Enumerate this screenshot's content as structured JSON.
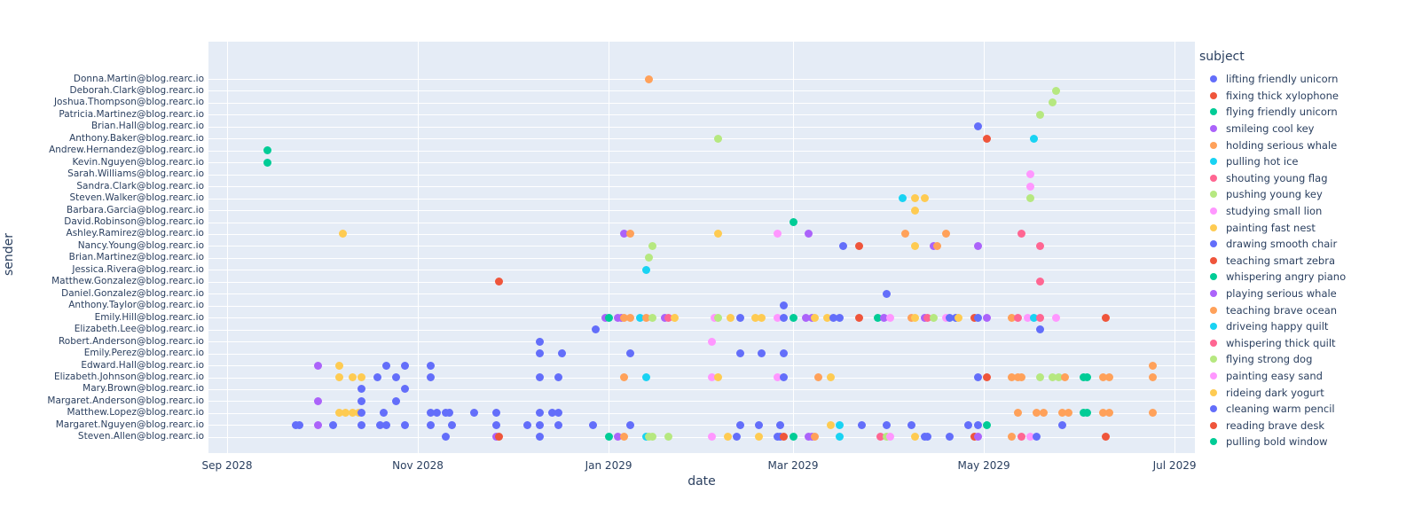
{
  "figure": {
    "x_axis_title": "date",
    "y_axis_title": "sender",
    "legend_title": "subject",
    "plot_bg": "#E5ECF6",
    "grid_color": "#ffffff",
    "text_color": "#2a3f5f"
  },
  "palette": [
    "#636EFA",
    "#EF553B",
    "#00CC96",
    "#AB63FA",
    "#FFA15A",
    "#19D3F3",
    "#FF6692",
    "#B6E880",
    "#FF97FF",
    "#FECB52"
  ],
  "chart_data": {
    "type": "scatter",
    "title": "",
    "xlabel": "date",
    "ylabel": "sender",
    "legend_title": "subject",
    "legend_position": "right",
    "grid": true,
    "x_ticks": [
      "Sep 2028",
      "Nov 2028",
      "Jan 2029",
      "Mar 2029",
      "May 2029",
      "Jul 2029"
    ],
    "x_tick_dates": [
      "2028-09-01",
      "2028-11-01",
      "2029-01-01",
      "2029-03-01",
      "2029-05-01",
      "2029-07-01"
    ],
    "x_range": [
      "2028-08-26",
      "2029-07-07"
    ],
    "subjects": [
      "lifting friendly unicorn",
      "fixing thick xylophone",
      "flying friendly unicorn",
      "smileing cool key",
      "holding serious whale",
      "pulling hot ice",
      "shouting young flag",
      "pushing young key",
      "studying small lion",
      "painting fast nest",
      "drawing smooth chair",
      "teaching smart zebra",
      "whispering angry piano",
      "playing serious whale",
      "teaching brave ocean",
      "driveing happy quilt",
      "whispering thick quilt",
      "flying strong dog",
      "painting easy sand",
      "rideing dark yogurt",
      "cleaning warm pencil",
      "reading brave desk",
      "pulling bold window"
    ],
    "senders": [
      "Donna.Martin@blog.rearc.io",
      "Deborah.Clark@blog.rearc.io",
      "Joshua.Thompson@blog.rearc.io",
      "Patricia.Martinez@blog.rearc.io",
      "Brian.Hall@blog.rearc.io",
      "Anthony.Baker@blog.rearc.io",
      "Andrew.Hernandez@blog.rearc.io",
      "Kevin.Nguyen@blog.rearc.io",
      "Sarah.Williams@blog.rearc.io",
      "Sandra.Clark@blog.rearc.io",
      "Steven.Walker@blog.rearc.io",
      "Barbara.Garcia@blog.rearc.io",
      "David.Robinson@blog.rearc.io",
      "Ashley.Ramirez@blog.rearc.io",
      "Nancy.Young@blog.rearc.io",
      "Brian.Martinez@blog.rearc.io",
      "Jessica.Rivera@blog.rearc.io",
      "Matthew.Gonzalez@blog.rearc.io",
      "Daniel.Gonzalez@blog.rearc.io",
      "Anthony.Taylor@blog.rearc.io",
      "Emily.Hill@blog.rearc.io",
      "Elizabeth.Lee@blog.rearc.io",
      "Robert.Anderson@blog.rearc.io",
      "Emily.Perez@blog.rearc.io",
      "Edward.Hall@blog.rearc.io",
      "Elizabeth.Johnson@blog.rearc.io",
      "Mary.Brown@blog.rearc.io",
      "Margaret.Anderson@blog.rearc.io",
      "Matthew.Lopez@blog.rearc.io",
      "Margaret.Nguyen@blog.rearc.io",
      "Steven.Allen@blog.rearc.io"
    ],
    "points_note": "each point = [date, palette_color_index]; subjects cycle the 10-color palette",
    "points": [
      {
        "sender": 0,
        "pts": [
          [
            "2029-01-14",
            4
          ]
        ]
      },
      {
        "sender": 1,
        "pts": [
          [
            "2029-05-24",
            7
          ]
        ]
      },
      {
        "sender": 2,
        "pts": [
          [
            "2029-05-23",
            7
          ]
        ]
      },
      {
        "sender": 3,
        "pts": [
          [
            "2029-05-19",
            7
          ]
        ]
      },
      {
        "sender": 4,
        "pts": [
          [
            "2029-04-29",
            0
          ]
        ]
      },
      {
        "sender": 5,
        "pts": [
          [
            "2029-02-05",
            7
          ],
          [
            "2029-05-02",
            1
          ],
          [
            "2029-05-17",
            5
          ]
        ]
      },
      {
        "sender": 6,
        "pts": [
          [
            "2028-09-14",
            2
          ]
        ]
      },
      {
        "sender": 7,
        "pts": [
          [
            "2028-09-14",
            2
          ]
        ]
      },
      {
        "sender": 8,
        "pts": [
          [
            "2029-05-16",
            8
          ]
        ]
      },
      {
        "sender": 9,
        "pts": [
          [
            "2029-05-16",
            8
          ]
        ]
      },
      {
        "sender": 10,
        "pts": [
          [
            "2029-04-05",
            5
          ],
          [
            "2029-04-09",
            9
          ],
          [
            "2029-04-12",
            9
          ],
          [
            "2029-05-16",
            7
          ]
        ]
      },
      {
        "sender": 11,
        "pts": [
          [
            "2029-04-09",
            9
          ]
        ]
      },
      {
        "sender": 12,
        "pts": [
          [
            "2029-03-01",
            2
          ]
        ]
      },
      {
        "sender": 13,
        "pts": [
          [
            "2028-10-08",
            9
          ],
          [
            "2029-01-06",
            3
          ],
          [
            "2029-01-08",
            4
          ],
          [
            "2029-02-05",
            9
          ],
          [
            "2029-02-24",
            8
          ],
          [
            "2029-03-06",
            3
          ],
          [
            "2029-04-06",
            4
          ],
          [
            "2029-04-19",
            4
          ],
          [
            "2029-05-13",
            6
          ]
        ]
      },
      {
        "sender": 14,
        "pts": [
          [
            "2029-01-15",
            7
          ],
          [
            "2029-03-17",
            0
          ],
          [
            "2029-03-22",
            1
          ],
          [
            "2029-04-09",
            9
          ],
          [
            "2029-04-15",
            3
          ],
          [
            "2029-04-16",
            4
          ],
          [
            "2029-04-29",
            3
          ],
          [
            "2029-05-19",
            6
          ]
        ]
      },
      {
        "sender": 15,
        "pts": [
          [
            "2029-01-14",
            7
          ]
        ]
      },
      {
        "sender": 16,
        "pts": [
          [
            "2029-01-13",
            5
          ]
        ]
      },
      {
        "sender": 17,
        "pts": [
          [
            "2028-11-27",
            1
          ],
          [
            "2029-05-19",
            6
          ]
        ]
      },
      {
        "sender": 18,
        "pts": [
          [
            "2029-03-31",
            0
          ]
        ]
      },
      {
        "sender": 19,
        "pts": [
          [
            "2029-02-26",
            0
          ]
        ]
      },
      {
        "sender": 20,
        "pts": [
          [
            "2028-12-31",
            3
          ],
          [
            "2029-01-01",
            2
          ],
          [
            "2029-01-04",
            3
          ],
          [
            "2029-01-05",
            3
          ],
          [
            "2029-01-06",
            4
          ],
          [
            "2029-01-08",
            4
          ],
          [
            "2029-01-11",
            5
          ],
          [
            "2029-01-13",
            4
          ],
          [
            "2029-01-15",
            7
          ],
          [
            "2029-01-19",
            3
          ],
          [
            "2029-01-20",
            6
          ],
          [
            "2029-01-22",
            9
          ],
          [
            "2029-02-04",
            8
          ],
          [
            "2029-02-05",
            7
          ],
          [
            "2029-02-09",
            9
          ],
          [
            "2029-02-12",
            0
          ],
          [
            "2029-02-17",
            9
          ],
          [
            "2029-02-19",
            9
          ],
          [
            "2029-02-24",
            8
          ],
          [
            "2029-02-26",
            0
          ],
          [
            "2029-03-01",
            2
          ],
          [
            "2029-03-05",
            3
          ],
          [
            "2029-03-07",
            3
          ],
          [
            "2029-03-08",
            9
          ],
          [
            "2029-03-12",
            9
          ],
          [
            "2029-03-14",
            0
          ],
          [
            "2029-03-16",
            0
          ],
          [
            "2029-03-22",
            1
          ],
          [
            "2029-03-28",
            2
          ],
          [
            "2029-03-30",
            3
          ],
          [
            "2029-04-01",
            8
          ],
          [
            "2029-04-08",
            4
          ],
          [
            "2029-04-09",
            9
          ],
          [
            "2029-04-12",
            3
          ],
          [
            "2029-04-13",
            6
          ],
          [
            "2029-04-15",
            7
          ],
          [
            "2029-04-19",
            8
          ],
          [
            "2029-04-20",
            0
          ],
          [
            "2029-04-22",
            0
          ],
          [
            "2029-04-23",
            9
          ],
          [
            "2029-04-28",
            1
          ],
          [
            "2029-04-29",
            0
          ],
          [
            "2029-05-02",
            3
          ],
          [
            "2029-05-10",
            4
          ],
          [
            "2029-05-12",
            6
          ],
          [
            "2029-05-15",
            8
          ],
          [
            "2029-05-17",
            5
          ],
          [
            "2029-05-19",
            6
          ],
          [
            "2029-05-24",
            8
          ],
          [
            "2029-06-09",
            1
          ]
        ]
      },
      {
        "sender": 21,
        "pts": [
          [
            "2028-12-28",
            0
          ],
          [
            "2029-05-19",
            0
          ]
        ]
      },
      {
        "sender": 22,
        "pts": [
          [
            "2028-12-10",
            0
          ],
          [
            "2029-02-03",
            8
          ]
        ]
      },
      {
        "sender": 23,
        "pts": [
          [
            "2028-12-10",
            0
          ],
          [
            "2028-12-17",
            0
          ],
          [
            "2029-01-08",
            0
          ],
          [
            "2029-02-12",
            0
          ],
          [
            "2029-02-19",
            0
          ],
          [
            "2029-02-26",
            0
          ]
        ]
      },
      {
        "sender": 24,
        "pts": [
          [
            "2028-09-30",
            3
          ],
          [
            "2028-10-07",
            9
          ],
          [
            "2028-10-22",
            0
          ],
          [
            "2028-10-28",
            0
          ],
          [
            "2028-11-05",
            0
          ],
          [
            "2029-06-24",
            4
          ]
        ]
      },
      {
        "sender": 25,
        "pts": [
          [
            "2028-10-07",
            9
          ],
          [
            "2028-10-11",
            9
          ],
          [
            "2028-10-14",
            9
          ],
          [
            "2028-10-19",
            0
          ],
          [
            "2028-10-25",
            0
          ],
          [
            "2028-11-05",
            0
          ],
          [
            "2028-12-10",
            0
          ],
          [
            "2028-12-16",
            0
          ],
          [
            "2029-01-06",
            4
          ],
          [
            "2029-01-13",
            5
          ],
          [
            "2029-02-03",
            8
          ],
          [
            "2029-02-05",
            9
          ],
          [
            "2029-02-24",
            8
          ],
          [
            "2029-02-26",
            0
          ],
          [
            "2029-03-09",
            4
          ],
          [
            "2029-03-13",
            9
          ],
          [
            "2029-04-29",
            0
          ],
          [
            "2029-05-02",
            1
          ],
          [
            "2029-05-10",
            4
          ],
          [
            "2029-05-12",
            4
          ],
          [
            "2029-05-13",
            4
          ],
          [
            "2029-05-19",
            7
          ],
          [
            "2029-05-23",
            7
          ],
          [
            "2029-05-25",
            7
          ],
          [
            "2029-05-27",
            4
          ],
          [
            "2029-06-02",
            2
          ],
          [
            "2029-06-03",
            2
          ],
          [
            "2029-06-08",
            4
          ],
          [
            "2029-06-10",
            4
          ],
          [
            "2029-06-24",
            4
          ]
        ]
      },
      {
        "sender": 26,
        "pts": [
          [
            "2028-10-14",
            0
          ],
          [
            "2028-10-28",
            0
          ]
        ]
      },
      {
        "sender": 27,
        "pts": [
          [
            "2028-09-30",
            3
          ],
          [
            "2028-10-14",
            0
          ],
          [
            "2028-10-25",
            0
          ]
        ]
      },
      {
        "sender": 28,
        "pts": [
          [
            "2028-10-07",
            9
          ],
          [
            "2028-10-09",
            9
          ],
          [
            "2028-10-11",
            9
          ],
          [
            "2028-10-13",
            9
          ],
          [
            "2028-10-14",
            0
          ],
          [
            "2028-10-21",
            0
          ],
          [
            "2028-11-05",
            0
          ],
          [
            "2028-11-07",
            0
          ],
          [
            "2028-11-10",
            0
          ],
          [
            "2028-11-11",
            0
          ],
          [
            "2028-11-19",
            0
          ],
          [
            "2028-11-26",
            0
          ],
          [
            "2028-12-10",
            0
          ],
          [
            "2028-12-14",
            0
          ],
          [
            "2028-12-16",
            0
          ],
          [
            "2029-05-12",
            4
          ],
          [
            "2029-05-18",
            4
          ],
          [
            "2029-05-20",
            4
          ],
          [
            "2029-05-26",
            4
          ],
          [
            "2029-05-28",
            4
          ],
          [
            "2029-06-02",
            2
          ],
          [
            "2029-06-03",
            2
          ],
          [
            "2029-06-08",
            4
          ],
          [
            "2029-06-10",
            4
          ],
          [
            "2029-06-24",
            4
          ]
        ]
      },
      {
        "sender": 29,
        "pts": [
          [
            "2028-09-23",
            0
          ],
          [
            "2028-09-24",
            0
          ],
          [
            "2028-09-30",
            3
          ],
          [
            "2028-10-05",
            0
          ],
          [
            "2028-10-14",
            0
          ],
          [
            "2028-10-20",
            0
          ],
          [
            "2028-10-22",
            0
          ],
          [
            "2028-10-28",
            0
          ],
          [
            "2028-11-05",
            0
          ],
          [
            "2028-11-12",
            0
          ],
          [
            "2028-11-26",
            0
          ],
          [
            "2028-12-06",
            0
          ],
          [
            "2028-12-10",
            0
          ],
          [
            "2028-12-16",
            0
          ],
          [
            "2028-12-27",
            0
          ],
          [
            "2029-01-08",
            0
          ],
          [
            "2029-02-12",
            0
          ],
          [
            "2029-02-18",
            0
          ],
          [
            "2029-02-25",
            0
          ],
          [
            "2029-03-13",
            9
          ],
          [
            "2029-03-16",
            5
          ],
          [
            "2029-03-23",
            0
          ],
          [
            "2029-03-31",
            0
          ],
          [
            "2029-04-08",
            0
          ],
          [
            "2029-04-26",
            0
          ],
          [
            "2029-04-29",
            0
          ],
          [
            "2029-05-02",
            2
          ],
          [
            "2029-05-26",
            0
          ]
        ]
      },
      {
        "sender": 30,
        "pts": [
          [
            "2028-11-10",
            0
          ],
          [
            "2028-11-26",
            3
          ],
          [
            "2028-11-27",
            1
          ],
          [
            "2028-12-10",
            0
          ],
          [
            "2029-01-01",
            2
          ],
          [
            "2029-01-04",
            3
          ],
          [
            "2029-01-06",
            4
          ],
          [
            "2029-01-13",
            5
          ],
          [
            "2029-01-14",
            7
          ],
          [
            "2029-01-15",
            7
          ],
          [
            "2029-01-20",
            7
          ],
          [
            "2029-02-03",
            8
          ],
          [
            "2029-02-08",
            9
          ],
          [
            "2029-02-11",
            0
          ],
          [
            "2029-02-18",
            9
          ],
          [
            "2029-02-24",
            0
          ],
          [
            "2029-02-25",
            0
          ],
          [
            "2029-02-26",
            1
          ],
          [
            "2029-03-01",
            2
          ],
          [
            "2029-03-06",
            3
          ],
          [
            "2029-03-07",
            3
          ],
          [
            "2029-03-08",
            4
          ],
          [
            "2029-03-16",
            5
          ],
          [
            "2029-03-29",
            6
          ],
          [
            "2029-03-31",
            7
          ],
          [
            "2029-04-01",
            8
          ],
          [
            "2029-04-09",
            9
          ],
          [
            "2029-04-12",
            0
          ],
          [
            "2029-04-13",
            0
          ],
          [
            "2029-04-20",
            0
          ],
          [
            "2029-04-28",
            1
          ],
          [
            "2029-04-29",
            3
          ],
          [
            "2029-05-10",
            4
          ],
          [
            "2029-05-13",
            6
          ],
          [
            "2029-05-16",
            8
          ],
          [
            "2029-05-18",
            0
          ],
          [
            "2029-06-09",
            1
          ]
        ]
      }
    ]
  }
}
